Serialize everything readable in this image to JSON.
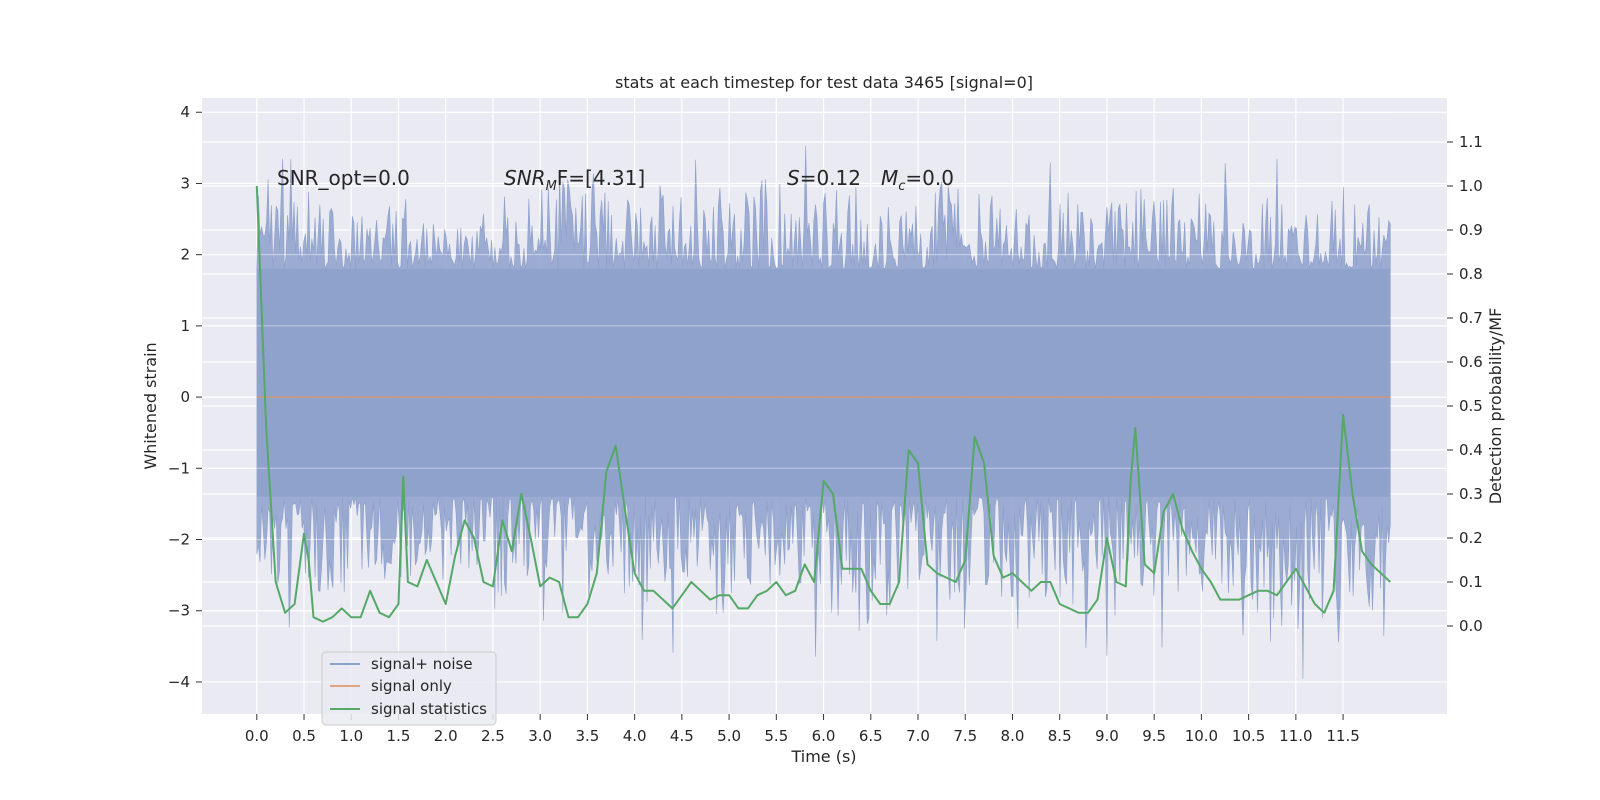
{
  "chart_data": {
    "type": "line",
    "title": "stats at each timestep for test data 3465 [signal=0]",
    "xlabel": "Time (s)",
    "ylabel_left": "Whitened strain",
    "ylabel_right": "Detection probability/MF",
    "xlim": [
      -0.58,
      12.6
    ],
    "ylim_left": [
      -4.45,
      4.2
    ],
    "ylim_right": [
      -0.2,
      1.2
    ],
    "x_ticks": [
      "0.0",
      "0.5",
      "1.0",
      "1.5",
      "2.0",
      "2.5",
      "3.0",
      "3.5",
      "4.0",
      "4.5",
      "5.0",
      "5.5",
      "6.0",
      "6.5",
      "7.0",
      "7.5",
      "8.0",
      "8.5",
      "9.0",
      "9.5",
      "10.0",
      "10.5",
      "11.0",
      "11.5"
    ],
    "y_ticks_left": [
      "4",
      "3",
      "2",
      "1",
      "0",
      "−1",
      "−2",
      "−3",
      "−4"
    ],
    "y_ticks_right": [
      "1.1",
      "1.0",
      "0.9",
      "0.8",
      "0.7",
      "0.6",
      "0.5",
      "0.4",
      "0.3",
      "0.2",
      "0.1",
      "0.0"
    ],
    "grid": true,
    "legend_position": "lower-left",
    "annotations": {
      "snr_opt": "SNR_opt=0.0",
      "snr_mf_main": "SNR",
      "snr_mf_sub": "M",
      "snr_mf_rest": "F=[4.31]",
      "s_main": "S",
      "s_rest": "=0.12",
      "mc_main": "M",
      "mc_sub": "c",
      "mc_rest": "=0.0"
    },
    "series": [
      {
        "name": "signal+ noise",
        "axis": "left",
        "color": "#8da0cb",
        "style": "dense noise band",
        "x_range": [
          0.0,
          12.0
        ],
        "core_band": [
          -1.4,
          1.8
        ],
        "envelope_upper": [
          2.6,
          3.2,
          2.5,
          2.8,
          2.4,
          2.7,
          3.1,
          2.9,
          2.8,
          2.6,
          3.3,
          2.8,
          3.0,
          2.7,
          3.1,
          2.9,
          2.8,
          2.7,
          3.0,
          2.9,
          2.8,
          2.9,
          2.7,
          2.8
        ],
        "envelope_lower": [
          -2.6,
          -2.9,
          -2.5,
          -2.7,
          -2.6,
          -3.1,
          -3.2,
          -2.9,
          -2.8,
          -3.2,
          -3.0,
          -2.7,
          -3.3,
          -3.0,
          -2.9,
          -2.8,
          -3.0,
          -2.9,
          -2.8,
          -2.9,
          -3.0,
          -3.3,
          -3.0,
          -3.1
        ]
      },
      {
        "name": "signal only",
        "axis": "left",
        "color": "#dd8452",
        "x": [
          0.0,
          12.0
        ],
        "y": [
          0.0,
          0.0
        ]
      },
      {
        "name": "signal statistics",
        "axis": "right",
        "color": "#55a868",
        "x": [
          0.0,
          0.1,
          0.2,
          0.3,
          0.4,
          0.5,
          0.55,
          0.6,
          0.7,
          0.8,
          0.9,
          1.0,
          1.1,
          1.2,
          1.3,
          1.4,
          1.5,
          1.55,
          1.6,
          1.7,
          1.8,
          1.9,
          2.0,
          2.1,
          2.2,
          2.3,
          2.4,
          2.5,
          2.6,
          2.7,
          2.8,
          2.9,
          3.0,
          3.1,
          3.2,
          3.3,
          3.4,
          3.5,
          3.6,
          3.7,
          3.8,
          3.9,
          4.0,
          4.1,
          4.2,
          4.3,
          4.4,
          4.5,
          4.6,
          4.7,
          4.8,
          4.9,
          5.0,
          5.1,
          5.2,
          5.3,
          5.4,
          5.5,
          5.6,
          5.7,
          5.8,
          5.9,
          6.0,
          6.1,
          6.2,
          6.3,
          6.4,
          6.5,
          6.6,
          6.7,
          6.8,
          6.9,
          7.0,
          7.1,
          7.2,
          7.3,
          7.4,
          7.5,
          7.6,
          7.7,
          7.8,
          7.9,
          8.0,
          8.1,
          8.2,
          8.3,
          8.4,
          8.5,
          8.6,
          8.7,
          8.8,
          8.9,
          9.0,
          9.1,
          9.2,
          9.25,
          9.3,
          9.4,
          9.5,
          9.6,
          9.7,
          9.8,
          9.9,
          10.0,
          10.1,
          10.2,
          10.3,
          10.4,
          10.5,
          10.6,
          10.7,
          10.8,
          10.9,
          11.0,
          11.1,
          11.2,
          11.3,
          11.4,
          11.5,
          11.6,
          11.7,
          11.8,
          11.9,
          12.0
        ],
        "y": [
          1.0,
          0.45,
          0.1,
          0.03,
          0.05,
          0.21,
          0.15,
          0.02,
          0.01,
          0.02,
          0.04,
          0.02,
          0.02,
          0.08,
          0.03,
          0.02,
          0.05,
          0.34,
          0.1,
          0.09,
          0.15,
          0.1,
          0.05,
          0.16,
          0.24,
          0.2,
          0.1,
          0.09,
          0.24,
          0.17,
          0.3,
          0.2,
          0.09,
          0.11,
          0.1,
          0.02,
          0.02,
          0.05,
          0.12,
          0.35,
          0.41,
          0.26,
          0.12,
          0.08,
          0.08,
          0.06,
          0.04,
          0.07,
          0.1,
          0.08,
          0.06,
          0.07,
          0.07,
          0.04,
          0.04,
          0.07,
          0.08,
          0.1,
          0.07,
          0.08,
          0.14,
          0.1,
          0.33,
          0.3,
          0.13,
          0.13,
          0.13,
          0.08,
          0.05,
          0.05,
          0.1,
          0.4,
          0.37,
          0.14,
          0.12,
          0.11,
          0.1,
          0.15,
          0.43,
          0.37,
          0.16,
          0.11,
          0.12,
          0.1,
          0.08,
          0.1,
          0.1,
          0.05,
          0.04,
          0.03,
          0.03,
          0.06,
          0.2,
          0.1,
          0.09,
          0.33,
          0.45,
          0.14,
          0.12,
          0.26,
          0.3,
          0.22,
          0.17,
          0.13,
          0.1,
          0.06,
          0.06,
          0.06,
          0.07,
          0.08,
          0.08,
          0.07,
          0.1,
          0.13,
          0.09,
          0.05,
          0.03,
          0.08,
          0.48,
          0.3,
          0.17,
          0.14,
          0.12,
          0.1
        ]
      }
    ]
  }
}
